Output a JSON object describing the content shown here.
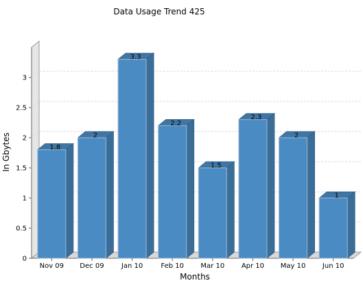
{
  "chart_data": {
    "type": "bar",
    "title": "Data Usage Trend 425",
    "xlabel": "Months",
    "ylabel": "In Gbytes",
    "categories": [
      "Nov 09",
      "Dec 09",
      "Jan 10",
      "Feb 10",
      "Mar 10",
      "Apr 10",
      "May 10",
      "Jun 10"
    ],
    "values": [
      1.8,
      2,
      3.3,
      2.2,
      1.5,
      2.3,
      2,
      1
    ],
    "value_labels": [
      "1.8",
      "2",
      "3.3",
      "2.2",
      "1.5",
      "2.3",
      "2",
      "1"
    ],
    "yticks": [
      "0",
      "0.5",
      "1",
      "1.5",
      "2",
      "2.5",
      "3"
    ],
    "ylim": [
      0,
      3.5
    ],
    "grid": true,
    "legend": "none",
    "colors": {
      "bar_front": "#4b8bc3",
      "bar_side": "#3a6e99",
      "bar_top": "#3f76a4",
      "floor": "#d9d9d9",
      "wall": "#e6e6e6",
      "grid": "#d8d8d8"
    }
  }
}
